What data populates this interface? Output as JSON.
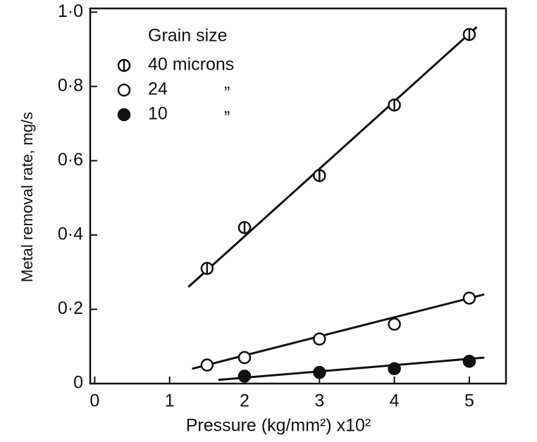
{
  "chart_data": {
    "type": "scatter",
    "x_label": "Pressure (kg/mm²) x10²",
    "y_label": "Metal removal rate, mg/s",
    "legend_title": "Grain size",
    "legend_ditto": "”",
    "xlim": [
      -0.06,
      5.49
    ],
    "ylim": [
      0,
      1.01
    ],
    "xticks": [
      0,
      1,
      2,
      3,
      4,
      5
    ],
    "yticks": [
      0,
      {
        "value": 0.2,
        "label": "0·2"
      },
      {
        "value": 0.4,
        "label": "0·4"
      },
      {
        "value": 0.6,
        "label": "0·6"
      },
      {
        "value": 0.8,
        "label": "0·8"
      },
      {
        "value": 1.0,
        "label": "1·0"
      }
    ],
    "series": [
      {
        "name": "40 microns",
        "marker": "circle-bar",
        "color": "#111111",
        "x": [
          1.5,
          2,
          3,
          4,
          5
        ],
        "values": [
          0.31,
          0.42,
          0.56,
          0.75,
          0.94
        ],
        "fit_x": [
          1.25,
          5.1
        ],
        "fit_values": [
          0.26,
          0.96
        ]
      },
      {
        "name": "24",
        "marker": "open",
        "color": "#111111",
        "x": [
          1.5,
          2,
          3,
          4,
          5
        ],
        "values": [
          0.05,
          0.07,
          0.12,
          0.16,
          0.23
        ],
        "fit_x": [
          1.3,
          5.2
        ],
        "fit_values": [
          0.04,
          0.24
        ]
      },
      {
        "name": "10",
        "marker": "filled",
        "color": "#111111",
        "x": [
          2,
          3,
          4,
          5
        ],
        "values": [
          0.02,
          0.03,
          0.04,
          0.06
        ],
        "fit_x": [
          1.65,
          5.2
        ],
        "fit_values": [
          0.01,
          0.07
        ]
      }
    ]
  }
}
